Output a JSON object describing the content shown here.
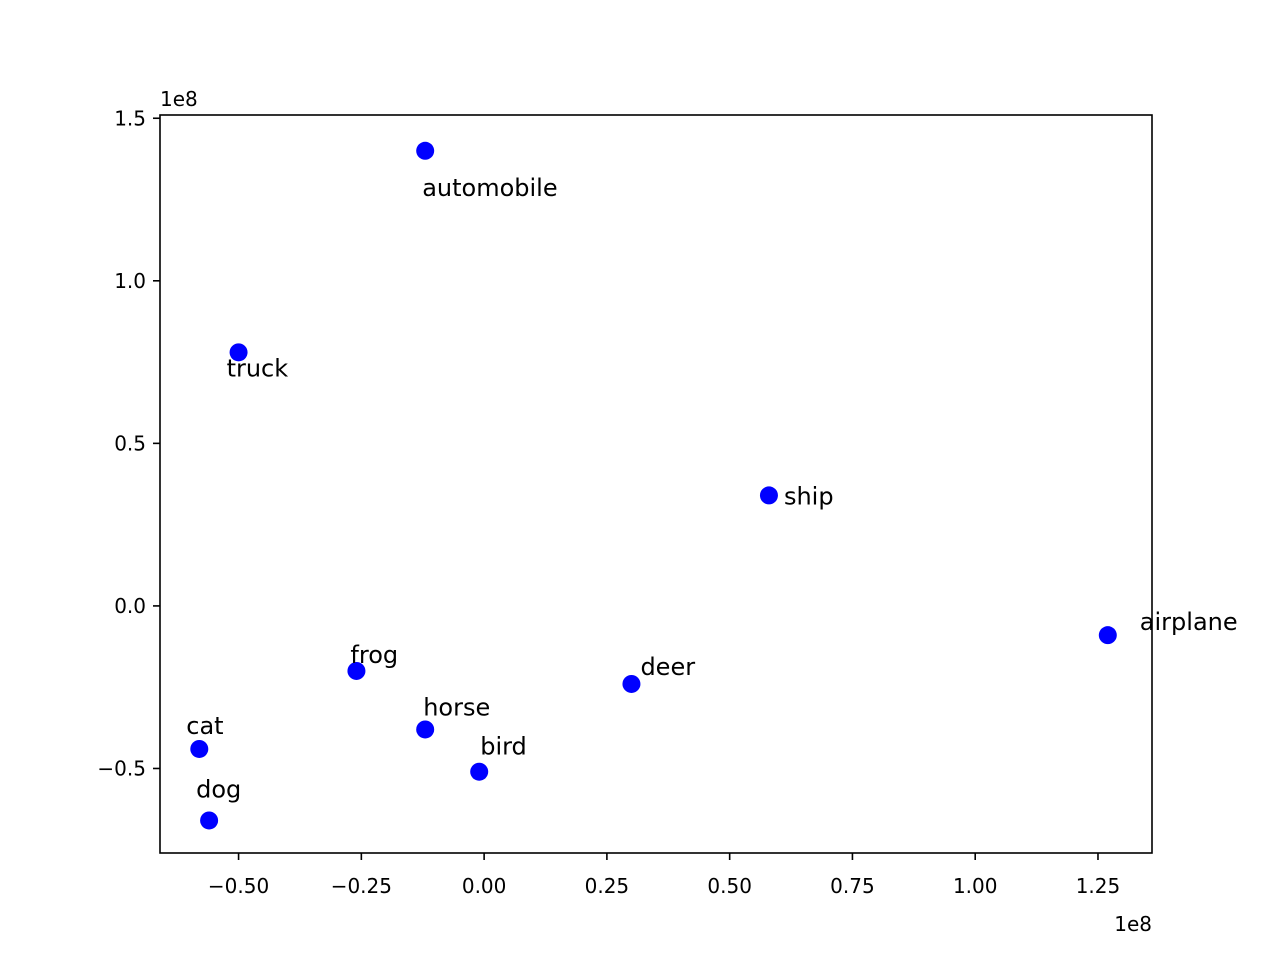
{
  "chart_data": {
    "type": "scatter",
    "title": "",
    "xlabel": "",
    "ylabel": "",
    "x_offset_label": "1e8",
    "y_offset_label": "1e8",
    "xlim": [
      -0.66,
      1.36
    ],
    "ylim": [
      -0.76,
      1.51
    ],
    "x_ticks": [
      -0.5,
      -0.25,
      0.0,
      0.25,
      0.5,
      0.75,
      1.0,
      1.25
    ],
    "x_tick_labels": [
      "−0.50",
      "−0.25",
      "0.00",
      "0.25",
      "0.50",
      "0.75",
      "1.00",
      "1.25"
    ],
    "y_ticks": [
      -0.5,
      0.0,
      0.5,
      1.0,
      1.5
    ],
    "y_tick_labels": [
      "−0.5",
      "0.0",
      "0.5",
      "1.0",
      "1.5"
    ],
    "marker_color": "#0000ff",
    "grid": false,
    "points": [
      {
        "label": "airplane",
        "x": 1.27,
        "y": -0.09
      },
      {
        "label": "automobile",
        "x": -0.12,
        "y": 1.4
      },
      {
        "label": "bird",
        "x": -0.01,
        "y": -0.51
      },
      {
        "label": "cat",
        "x": -0.58,
        "y": -0.44
      },
      {
        "label": "deer",
        "x": 0.3,
        "y": -0.24
      },
      {
        "label": "dog",
        "x": -0.56,
        "y": -0.66
      },
      {
        "label": "frog",
        "x": -0.26,
        "y": -0.2
      },
      {
        "label": "horse",
        "x": -0.12,
        "y": -0.38
      },
      {
        "label": "ship",
        "x": 0.58,
        "y": 0.34
      },
      {
        "label": "truck",
        "x": -0.5,
        "y": 0.78
      }
    ]
  }
}
